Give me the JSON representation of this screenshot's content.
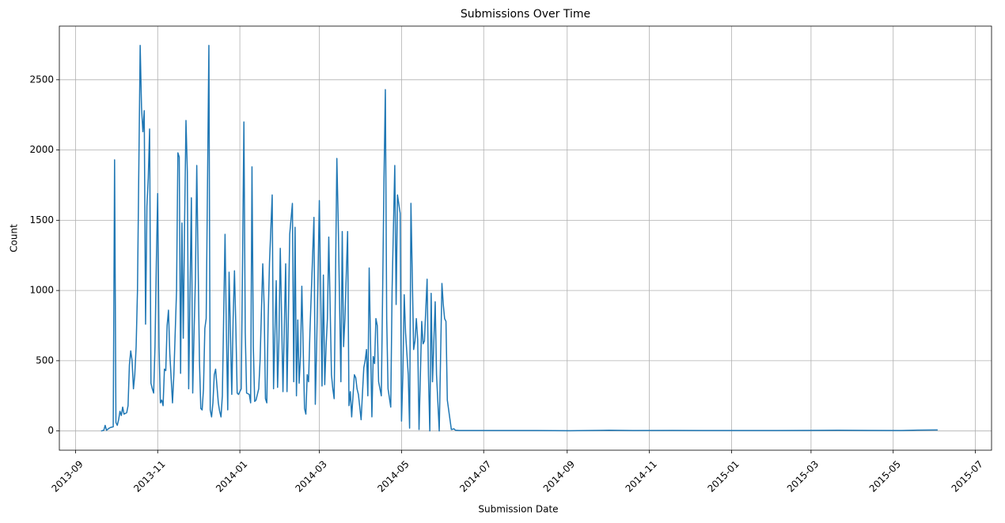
{
  "chart_data": {
    "type": "line",
    "title": "Submissions Over Time",
    "x_label": "Submission Date",
    "y_label": "Count",
    "grid": true,
    "xlim": [
      15937,
      16629
    ],
    "ylim": [
      -137,
      2882
    ],
    "xticks": [
      {
        "value": 15949,
        "label": "2013-09"
      },
      {
        "value": 16010,
        "label": "2013-11"
      },
      {
        "value": 16071,
        "label": "2014-01"
      },
      {
        "value": 16130,
        "label": "2014-03"
      },
      {
        "value": 16191,
        "label": "2014-05"
      },
      {
        "value": 16252,
        "label": "2014-07"
      },
      {
        "value": 16314,
        "label": "2014-09"
      },
      {
        "value": 16375,
        "label": "2014-11"
      },
      {
        "value": 16436,
        "label": "2015-01"
      },
      {
        "value": 16495,
        "label": "2015-03"
      },
      {
        "value": 16556,
        "label": "2015-05"
      },
      {
        "value": 16617,
        "label": "2015-07"
      }
    ],
    "yticks": [
      0,
      500,
      1000,
      1500,
      2000,
      2500
    ],
    "x": [
      15968,
      15970,
      15971,
      15972,
      15974,
      15975,
      15977,
      15978,
      15979,
      15980,
      15981,
      15982,
      15983,
      15984,
      15985,
      15987,
      15988,
      15989,
      15990,
      15991,
      15992,
      15993,
      15994,
      15995,
      15997,
      15998,
      15999,
      16000,
      16001,
      16002,
      16003,
      16004,
      16005,
      16006,
      16007,
      16008,
      16009,
      16010,
      16011,
      16012,
      16013,
      16014,
      16015,
      16016,
      16017,
      16018,
      16019,
      16021,
      16022,
      16024,
      16025,
      16026,
      16027,
      16028,
      16029,
      16030,
      16031,
      16032,
      16033,
      16035,
      16036,
      16037,
      16038,
      16039,
      16041,
      16042,
      16043,
      16044,
      16045,
      16046,
      16048,
      16049,
      16050,
      16051,
      16052,
      16053,
      16055,
      16056,
      16057,
      16058,
      16060,
      16061,
      16062,
      16063,
      16065,
      16066,
      16067,
      16068,
      16069,
      16070,
      16072,
      16073,
      16074,
      16075,
      16076,
      16078,
      16079,
      16080,
      16081,
      16082,
      16083,
      16085,
      16086,
      16088,
      16089,
      16090,
      16091,
      16092,
      16093,
      16095,
      16096,
      16098,
      16099,
      16100,
      16101,
      16102,
      16103,
      16105,
      16106,
      16107,
      16108,
      16110,
      16111,
      16112,
      16113,
      16114,
      16115,
      16116,
      16117,
      16119,
      16120,
      16121,
      16122,
      16123,
      16126,
      16127,
      16128,
      16129,
      16130,
      16132,
      16133,
      16134,
      16135,
      16136,
      16137,
      16139,
      16140,
      16141,
      16143,
      16144,
      16146,
      16147,
      16148,
      16149,
      16151,
      16152,
      16153,
      16154,
      16156,
      16157,
      16158,
      16159,
      16161,
      16163,
      16164,
      16165,
      16166,
      16167,
      16169,
      16170,
      16171,
      16172,
      16173,
      16174,
      16176,
      16177,
      16178,
      16179,
      16180,
      16181,
      16183,
      16184,
      16186,
      16187,
      16188,
      16190,
      16191,
      16192,
      16193,
      16194,
      16196,
      16197,
      16198,
      16200,
      16201,
      16202,
      16203,
      16204,
      16206,
      16207,
      16208,
      16210,
      16211,
      16212,
      16213,
      16214,
      16216,
      16217,
      16219,
      16221,
      16222,
      16223,
      16224,
      16225,
      16227,
      16228,
      16230,
      16231,
      16234,
      16257,
      16292,
      16316,
      16345,
      16363,
      16392,
      16433,
      16469,
      16492,
      16515,
      16539,
      16562,
      16574,
      16589
    ],
    "series": [
      {
        "name": "Count",
        "color": "#1f77b4",
        "values": [
          0,
          5,
          40,
          5,
          20,
          25,
          30,
          1930,
          60,
          40,
          80,
          140,
          110,
          170,
          120,
          130,
          180,
          470,
          570,
          500,
          300,
          400,
          600,
          1000,
          2745,
          2300,
          2130,
          2280,
          760,
          1600,
          1800,
          2150,
          340,
          300,
          270,
          600,
          1200,
          1690,
          600,
          200,
          220,
          180,
          440,
          430,
          750,
          860,
          550,
          200,
          400,
          1000,
          1980,
          1950,
          410,
          1480,
          660,
          1500,
          2210,
          1850,
          300,
          1660,
          270,
          700,
          1080,
          1890,
          500,
          160,
          150,
          300,
          730,
          800,
          2745,
          150,
          100,
          200,
          400,
          440,
          200,
          140,
          100,
          250,
          1400,
          700,
          150,
          1130,
          260,
          800,
          1140,
          750,
          270,
          260,
          300,
          1200,
          2200,
          700,
          270,
          260,
          200,
          1880,
          600,
          210,
          220,
          300,
          500,
          1190,
          900,
          230,
          200,
          800,
          1200,
          1680,
          300,
          1070,
          310,
          650,
          1300,
          800,
          280,
          1190,
          280,
          800,
          1400,
          1620,
          350,
          1450,
          250,
          790,
          340,
          530,
          1030,
          160,
          120,
          400,
          350,
          700,
          1520,
          190,
          600,
          1100,
          1640,
          320,
          1110,
          330,
          600,
          800,
          1380,
          400,
          300,
          230,
          1940,
          1500,
          350,
          1420,
          600,
          800,
          1420,
          180,
          280,
          100,
          400,
          380,
          300,
          260,
          80,
          450,
          500,
          580,
          250,
          1160,
          100,
          530,
          480,
          800,
          750,
          350,
          250,
          1000,
          1800,
          2430,
          800,
          300,
          170,
          1000,
          1890,
          900,
          1680,
          1550,
          70,
          400,
          970,
          700,
          400,
          20,
          1620,
          580,
          640,
          800,
          650,
          10,
          780,
          620,
          640,
          1080,
          400,
          0,
          980,
          350,
          920,
          400,
          0,
          1050,
          900,
          800,
          780,
          220,
          80,
          10,
          15,
          5,
          3,
          3,
          3,
          2,
          5,
          3,
          4,
          3,
          3,
          4,
          5,
          4,
          3,
          6,
          7
        ]
      }
    ]
  }
}
